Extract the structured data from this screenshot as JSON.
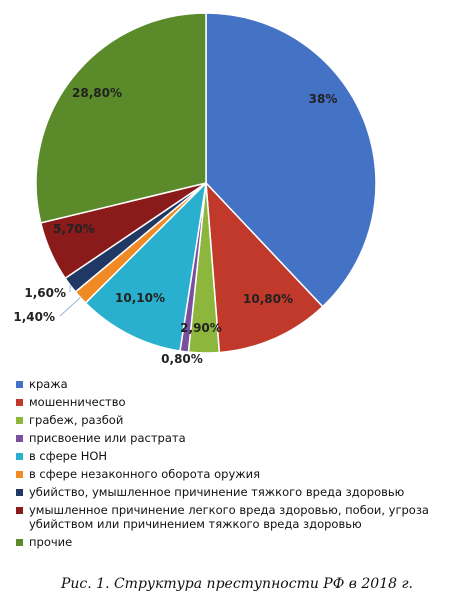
{
  "chart_data": {
    "type": "pie",
    "slices": [
      {
        "label": "кража",
        "value": 38,
        "display": "38%",
        "color": "#4472c4"
      },
      {
        "label": "мошенничество",
        "value": 10.8,
        "display": "10,80%",
        "color": "#c0392b"
      },
      {
        "label": "грабеж, разбой",
        "value": 2.9,
        "display": "2,90%",
        "color": "#8db63c"
      },
      {
        "label": "присвоение или растрата",
        "value": 0.8,
        "display": "0,80%",
        "color": "#7b4fa0"
      },
      {
        "label": "в сфере НОН",
        "value": 10.1,
        "display": "10,10%",
        "color": "#2ab0cf"
      },
      {
        "label": "в сфере незаконного оборота оружия",
        "value": 1.4,
        "display": "1,40%",
        "color": "#f08a24"
      },
      {
        "label": "убийство, умышленное причинение тяжкого вреда здоровью",
        "value": 1.6,
        "display": "1,60%",
        "color": "#1f3864"
      },
      {
        "label": "умышленное причинение легкого вреда здоровью, побои, угроза убийством или причинением тяжкого вреда здоровью",
        "value": 5.7,
        "display": "5,70%",
        "color": "#8b1a1a"
      },
      {
        "label": "прочие",
        "value": 28.8,
        "display": "28,80%",
        "color": "#5a8a2a"
      }
    ],
    "legend_position": "bottom"
  },
  "caption": "Рис. 1. Структура преступности РФ в 2018 г."
}
